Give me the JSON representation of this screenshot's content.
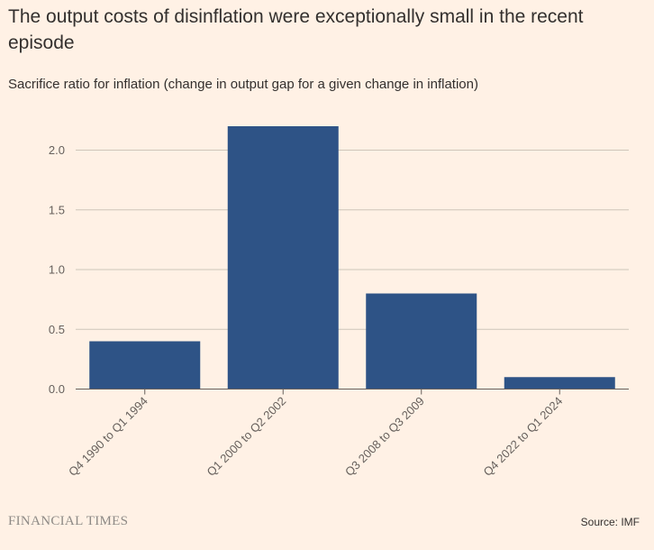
{
  "header": {
    "title": "The output costs of disinflation were exceptionally small in the recent episode",
    "subtitle": "Sacrifice ratio for inflation (change in output gap for a given change in inflation)"
  },
  "footer": {
    "brand": "FINANCIAL TIMES",
    "source": "Source: IMF"
  },
  "colors": {
    "bar": "#2E5386",
    "gridline": "#CEC6B9",
    "axis": "#66605C",
    "background": "#FFF1E5"
  },
  "chart_data": {
    "type": "bar",
    "categories": [
      "Q4 1990 to Q1 1994",
      "Q1 2000 to Q2 2002",
      "Q3 2008 to Q3 2009",
      "Q4 2022 to Q1 2024"
    ],
    "values": [
      0.4,
      2.2,
      0.8,
      0.1
    ],
    "ylim": [
      0,
      2.2
    ],
    "yticks": [
      0.0,
      0.5,
      1.0,
      1.5,
      2.0
    ],
    "ytick_labels": [
      "0.0",
      "0.5",
      "1.0",
      "1.5",
      "2.0"
    ],
    "grid": true,
    "legend": "none"
  }
}
